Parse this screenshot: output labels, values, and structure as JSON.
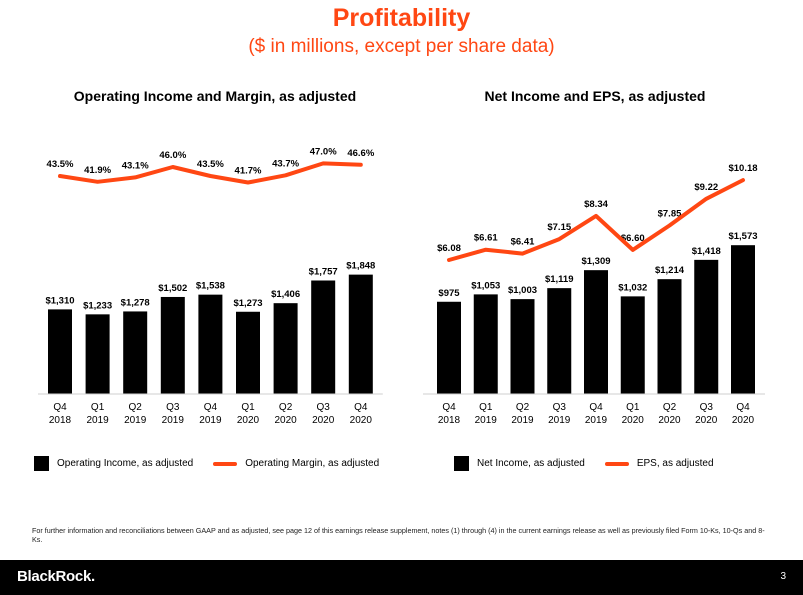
{
  "header": {
    "title": "Profitability",
    "subtitle": "($ in millions, except per share data)"
  },
  "footnote": "For further information and reconciliations between GAAP and as adjusted, see page 12 of this earnings release supplement, notes (1) through (4) in the current earnings release as well as previously filed Form 10-Ks, 10-Qs and 8-Ks.",
  "footer": {
    "brand": "BlackRock.",
    "page_number": "3"
  },
  "colors": {
    "accent": "#ff4713",
    "bar": "#000000"
  },
  "chart_data": [
    {
      "type": "bar",
      "title": "Operating Income and Margin, as adjusted",
      "categories": [
        [
          "Q4",
          "2018"
        ],
        [
          "Q1",
          "2019"
        ],
        [
          "Q2",
          "2019"
        ],
        [
          "Q3",
          "2019"
        ],
        [
          "Q4",
          "2019"
        ],
        [
          "Q1",
          "2020"
        ],
        [
          "Q2",
          "2020"
        ],
        [
          "Q3",
          "2020"
        ],
        [
          "Q4",
          "2020"
        ]
      ],
      "series": [
        {
          "name": "Operating Income, as adjusted",
          "kind": "bar",
          "values": [
            1310,
            1233,
            1278,
            1502,
            1538,
            1273,
            1406,
            1757,
            1848
          ],
          "labels": [
            "$1,310",
            "$1,233",
            "$1,278",
            "$1,502",
            "$1,538",
            "$1,273",
            "$1,406",
            "$1,757",
            "$1,848"
          ]
        },
        {
          "name": "Operating Margin, as adjusted",
          "kind": "line",
          "values": [
            43.5,
            41.9,
            43.1,
            46.0,
            43.5,
            41.7,
            43.7,
            47.0,
            46.6
          ],
          "labels": [
            "43.5%",
            "41.9%",
            "43.1%",
            "46.0%",
            "43.5%",
            "41.7%",
            "43.7%",
            "47.0%",
            "46.6%"
          ]
        }
      ]
    },
    {
      "type": "bar",
      "title": "Net Income and EPS, as adjusted",
      "categories": [
        [
          "Q4",
          "2018"
        ],
        [
          "Q1",
          "2019"
        ],
        [
          "Q2",
          "2019"
        ],
        [
          "Q3",
          "2019"
        ],
        [
          "Q4",
          "2019"
        ],
        [
          "Q1",
          "2020"
        ],
        [
          "Q2",
          "2020"
        ],
        [
          "Q3",
          "2020"
        ],
        [
          "Q4",
          "2020"
        ]
      ],
      "series": [
        {
          "name": "Net Income, as adjusted",
          "kind": "bar",
          "values": [
            975,
            1053,
            1003,
            1119,
            1309,
            1032,
            1214,
            1418,
            1573
          ],
          "labels": [
            "$975",
            "$1,053",
            "$1,003",
            "$1,119",
            "$1,309",
            "$1,032",
            "$1,214",
            "$1,418",
            "$1,573"
          ]
        },
        {
          "name": "EPS, as adjusted",
          "kind": "line",
          "values": [
            6.08,
            6.61,
            6.41,
            7.15,
            8.34,
            6.6,
            7.85,
            9.22,
            10.18
          ],
          "labels": [
            "$6.08",
            "$6.61",
            "$6.41",
            "$7.15",
            "$8.34",
            "$6.60",
            "$7.85",
            "$9.22",
            "$10.18"
          ]
        }
      ]
    }
  ]
}
